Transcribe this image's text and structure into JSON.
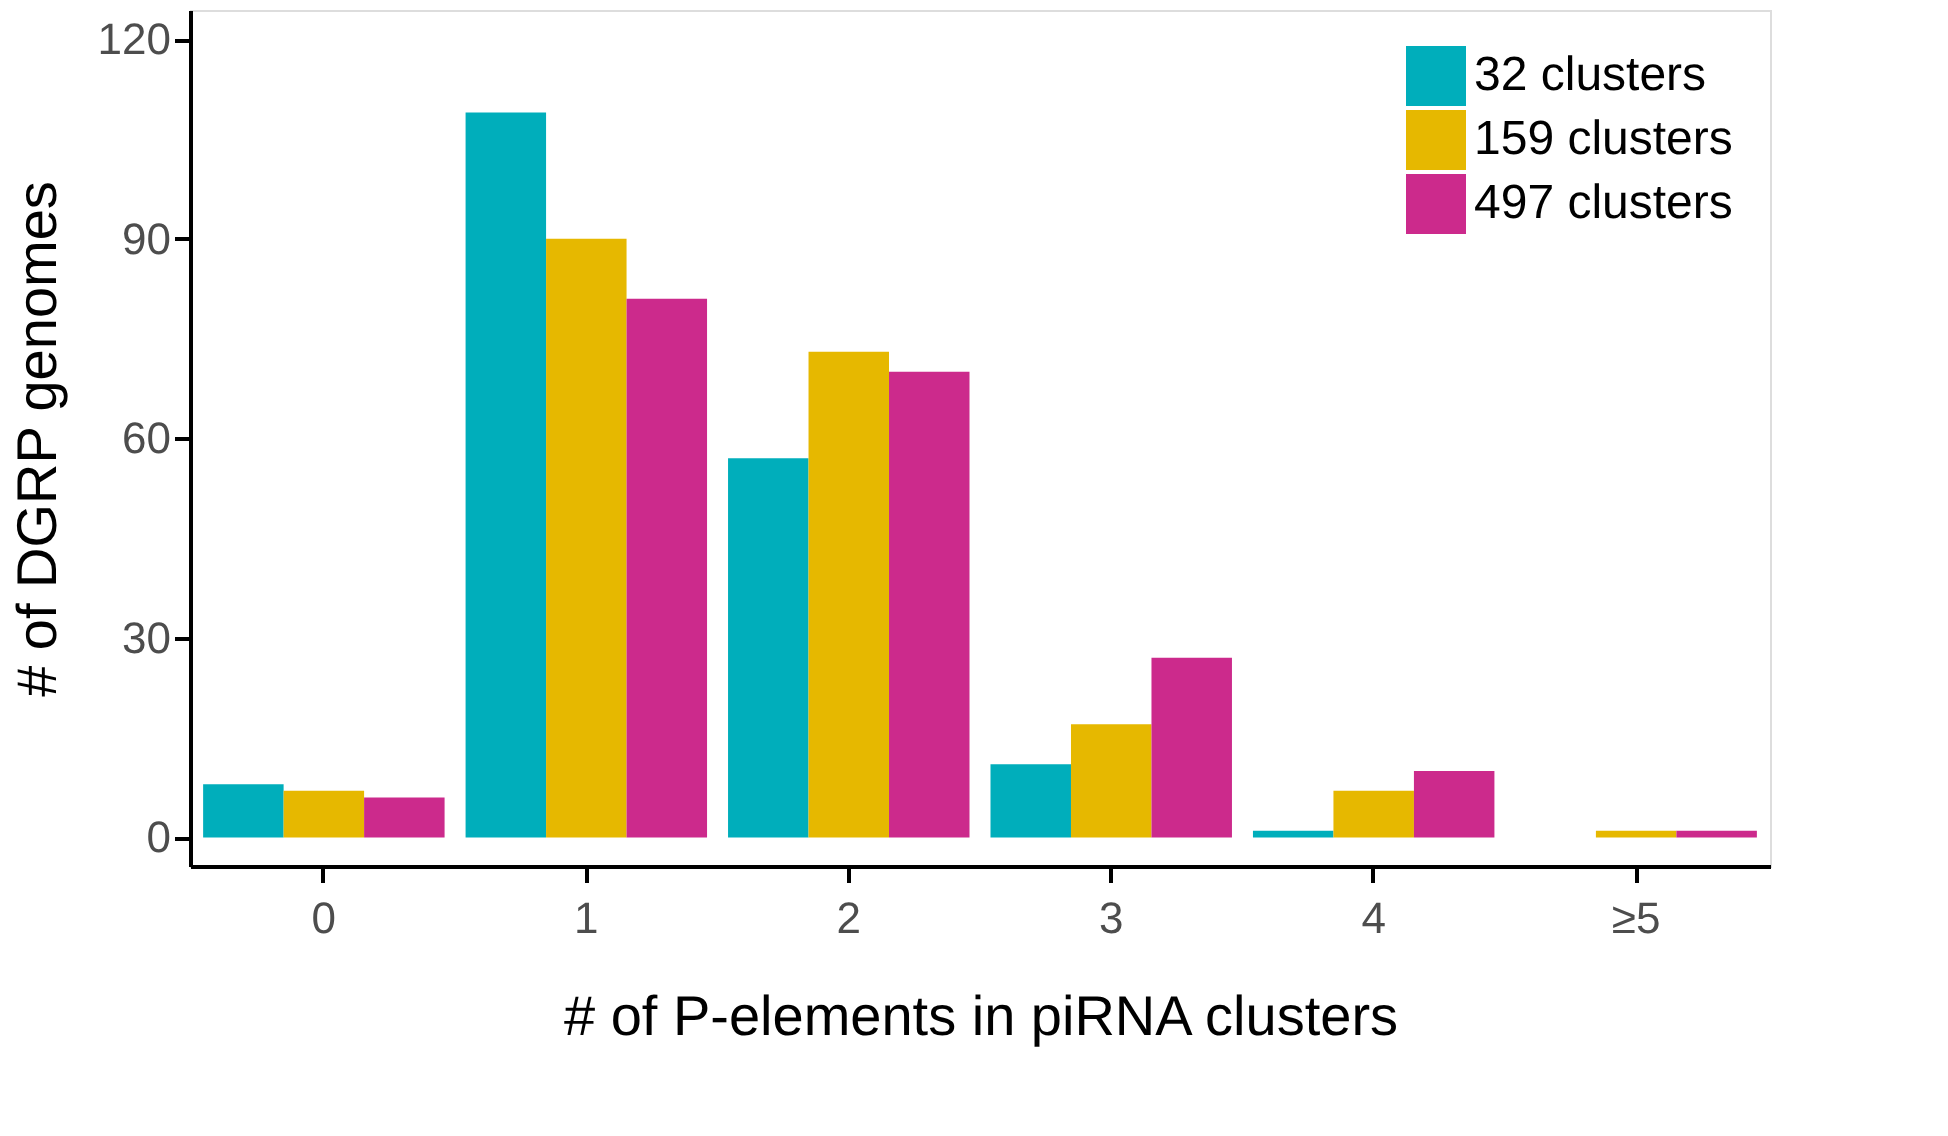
{
  "chart_data": {
    "type": "bar",
    "xlabel": "# of P-elements in piRNA clusters",
    "ylabel": "# of DGRP genomes",
    "categories": [
      "0",
      "1",
      "2",
      "3",
      "4",
      "≥5"
    ],
    "series": [
      {
        "name": "32 clusters",
        "color": "#00aebb",
        "values": [
          8,
          109,
          57,
          11,
          1,
          0
        ]
      },
      {
        "name": "159 clusters",
        "color": "#e6b800",
        "values": [
          7,
          90,
          73,
          17,
          7,
          1
        ]
      },
      {
        "name": "497 clusters",
        "color": "#cc2a8c",
        "values": [
          6,
          81,
          70,
          27,
          10,
          1
        ]
      }
    ],
    "ylim": [
      -4.3,
      124.4
    ],
    "yticks": [
      0,
      30,
      60,
      90,
      120
    ],
    "grid": false,
    "legend": "top right"
  }
}
